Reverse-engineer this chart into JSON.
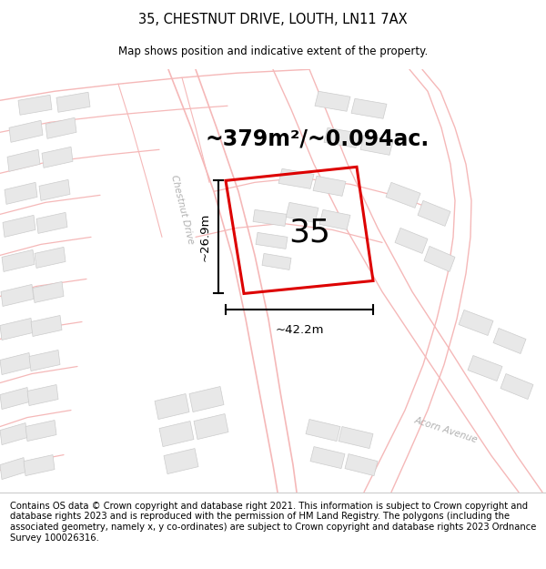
{
  "title": "35, CHESTNUT DRIVE, LOUTH, LN11 7AX",
  "subtitle": "Map shows position and indicative extent of the property.",
  "footer": "Contains OS data © Crown copyright and database right 2021. This information is subject to Crown copyright and database rights 2023 and is reproduced with the permission of HM Land Registry. The polygons (including the associated geometry, namely x, y co-ordinates) are subject to Crown copyright and database rights 2023 Ordnance Survey 100026316.",
  "area_label": "~379m²/~0.094ac.",
  "number_label": "35",
  "dim_h": "~26.9m",
  "dim_w": "~42.2m",
  "road_label_1": "Chestnut Drive",
  "road_label_2": "Acorn Avenue",
  "map_bg": "#f2f2f2",
  "plot_color": "#dd0000",
  "building_fill": "#e8e8e8",
  "building_edge": "#cccccc",
  "road_pink": "#f5b8b8",
  "figure_bg": "#ffffff",
  "title_fontsize": 10.5,
  "subtitle_fontsize": 8.5,
  "footer_fontsize": 7.2,
  "area_fontsize": 17,
  "number_fontsize": 26,
  "dim_fontsize": 9.5,
  "road_label_fontsize": 7.5
}
